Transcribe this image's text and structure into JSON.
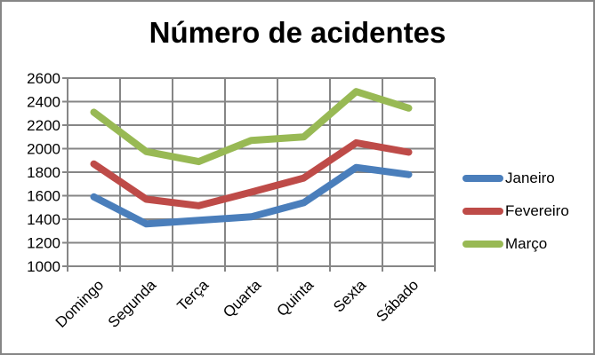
{
  "chart_data": {
    "type": "line",
    "title": "Número de acidentes",
    "xlabel": "",
    "ylabel": "",
    "categories": [
      "Domingo",
      "Segunda",
      "Terça",
      "Quarta",
      "Quinta",
      "Sexta",
      "Sábado"
    ],
    "series": [
      {
        "name": "Janeiro",
        "color": "#4a7ebb",
        "values": [
          1590,
          1360,
          1390,
          1420,
          1540,
          1840,
          1780
        ]
      },
      {
        "name": "Fevereiro",
        "color": "#be4b48",
        "values": [
          1870,
          1570,
          1515,
          1630,
          1750,
          2050,
          1970
        ]
      },
      {
        "name": "Março",
        "color": "#98b954",
        "values": [
          2310,
          1975,
          1890,
          2070,
          2100,
          2485,
          2345
        ]
      }
    ],
    "ylim": [
      1000,
      2600
    ],
    "yticks": [
      1000,
      1200,
      1400,
      1600,
      1800,
      2000,
      2200,
      2400,
      2600
    ],
    "grid": true,
    "legend_position": "right"
  }
}
